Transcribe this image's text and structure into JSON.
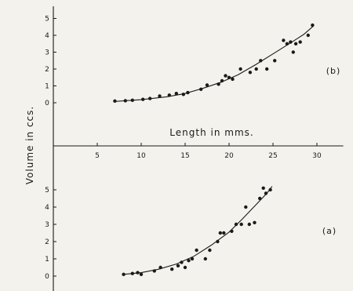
{
  "chart_data": {
    "type": "scatter",
    "xlabel": "Length in mms.",
    "ylabel": "Volume in ccs.",
    "x_ticks": [
      5,
      10,
      15,
      20,
      25,
      30
    ],
    "xlim": [
      0,
      33
    ],
    "y_ticks": [
      0,
      1,
      2,
      3,
      4,
      5
    ],
    "ylim": [
      -0.6,
      5.4
    ],
    "colors": {
      "ink": "#1a1a1a",
      "paper": "#f4f2ec"
    },
    "panels": [
      {
        "id": "b",
        "label": "(b)",
        "points": [
          [
            7,
            0.1
          ],
          [
            8.2,
            0.12
          ],
          [
            9,
            0.15
          ],
          [
            10.2,
            0.2
          ],
          [
            11,
            0.25
          ],
          [
            12.1,
            0.4
          ],
          [
            13.2,
            0.45
          ],
          [
            14,
            0.55
          ],
          [
            14.8,
            0.5
          ],
          [
            15.3,
            0.6
          ],
          [
            16.8,
            0.8
          ],
          [
            17.5,
            1.05
          ],
          [
            18.8,
            1.1
          ],
          [
            19.2,
            1.3
          ],
          [
            19.6,
            1.6
          ],
          [
            20,
            1.5
          ],
          [
            20.4,
            1.4
          ],
          [
            21.3,
            2.0
          ],
          [
            22.4,
            1.8
          ],
          [
            23.1,
            2.0
          ],
          [
            23.6,
            2.5
          ],
          [
            24.3,
            2.0
          ],
          [
            25.2,
            2.5
          ],
          [
            26.2,
            3.7
          ],
          [
            26.6,
            3.5
          ],
          [
            27,
            3.6
          ],
          [
            27.3,
            3.0
          ],
          [
            27.6,
            3.5
          ],
          [
            28.1,
            3.6
          ],
          [
            29,
            4.0
          ],
          [
            29.5,
            4.6
          ]
        ],
        "curve": [
          [
            7,
            0.08
          ],
          [
            10,
            0.18
          ],
          [
            13,
            0.36
          ],
          [
            15,
            0.55
          ],
          [
            17,
            0.85
          ],
          [
            19,
            1.2
          ],
          [
            21,
            1.65
          ],
          [
            23,
            2.25
          ],
          [
            25,
            2.9
          ],
          [
            27,
            3.55
          ],
          [
            28.5,
            4.05
          ],
          [
            29.6,
            4.55
          ]
        ]
      },
      {
        "id": "a",
        "label": "(a)",
        "points": [
          [
            8,
            0.1
          ],
          [
            9,
            0.15
          ],
          [
            9.6,
            0.2
          ],
          [
            10,
            0.1
          ],
          [
            11.5,
            0.3
          ],
          [
            12.2,
            0.5
          ],
          [
            13.5,
            0.4
          ],
          [
            14.2,
            0.6
          ],
          [
            14.6,
            0.8
          ],
          [
            15,
            0.5
          ],
          [
            15.4,
            0.9
          ],
          [
            15.8,
            1.0
          ],
          [
            16.3,
            1.5
          ],
          [
            17.3,
            1.0
          ],
          [
            17.8,
            1.5
          ],
          [
            18.7,
            2.0
          ],
          [
            19,
            2.5
          ],
          [
            19.4,
            2.5
          ],
          [
            20.3,
            2.6
          ],
          [
            20.8,
            3.0
          ],
          [
            21.4,
            3.0
          ],
          [
            21.9,
            4.0
          ],
          [
            22.3,
            3.0
          ],
          [
            22.9,
            3.1
          ],
          [
            23.5,
            4.5
          ],
          [
            23.9,
            5.1
          ],
          [
            24.2,
            4.8
          ],
          [
            24.7,
            5.0
          ]
        ],
        "curve": [
          [
            8,
            0.1
          ],
          [
            10,
            0.2
          ],
          [
            12,
            0.4
          ],
          [
            14,
            0.7
          ],
          [
            16,
            1.15
          ],
          [
            18,
            1.8
          ],
          [
            20,
            2.55
          ],
          [
            21.5,
            3.3
          ],
          [
            23,
            4.1
          ],
          [
            24.3,
            4.8
          ],
          [
            24.9,
            5.2
          ]
        ]
      }
    ]
  }
}
